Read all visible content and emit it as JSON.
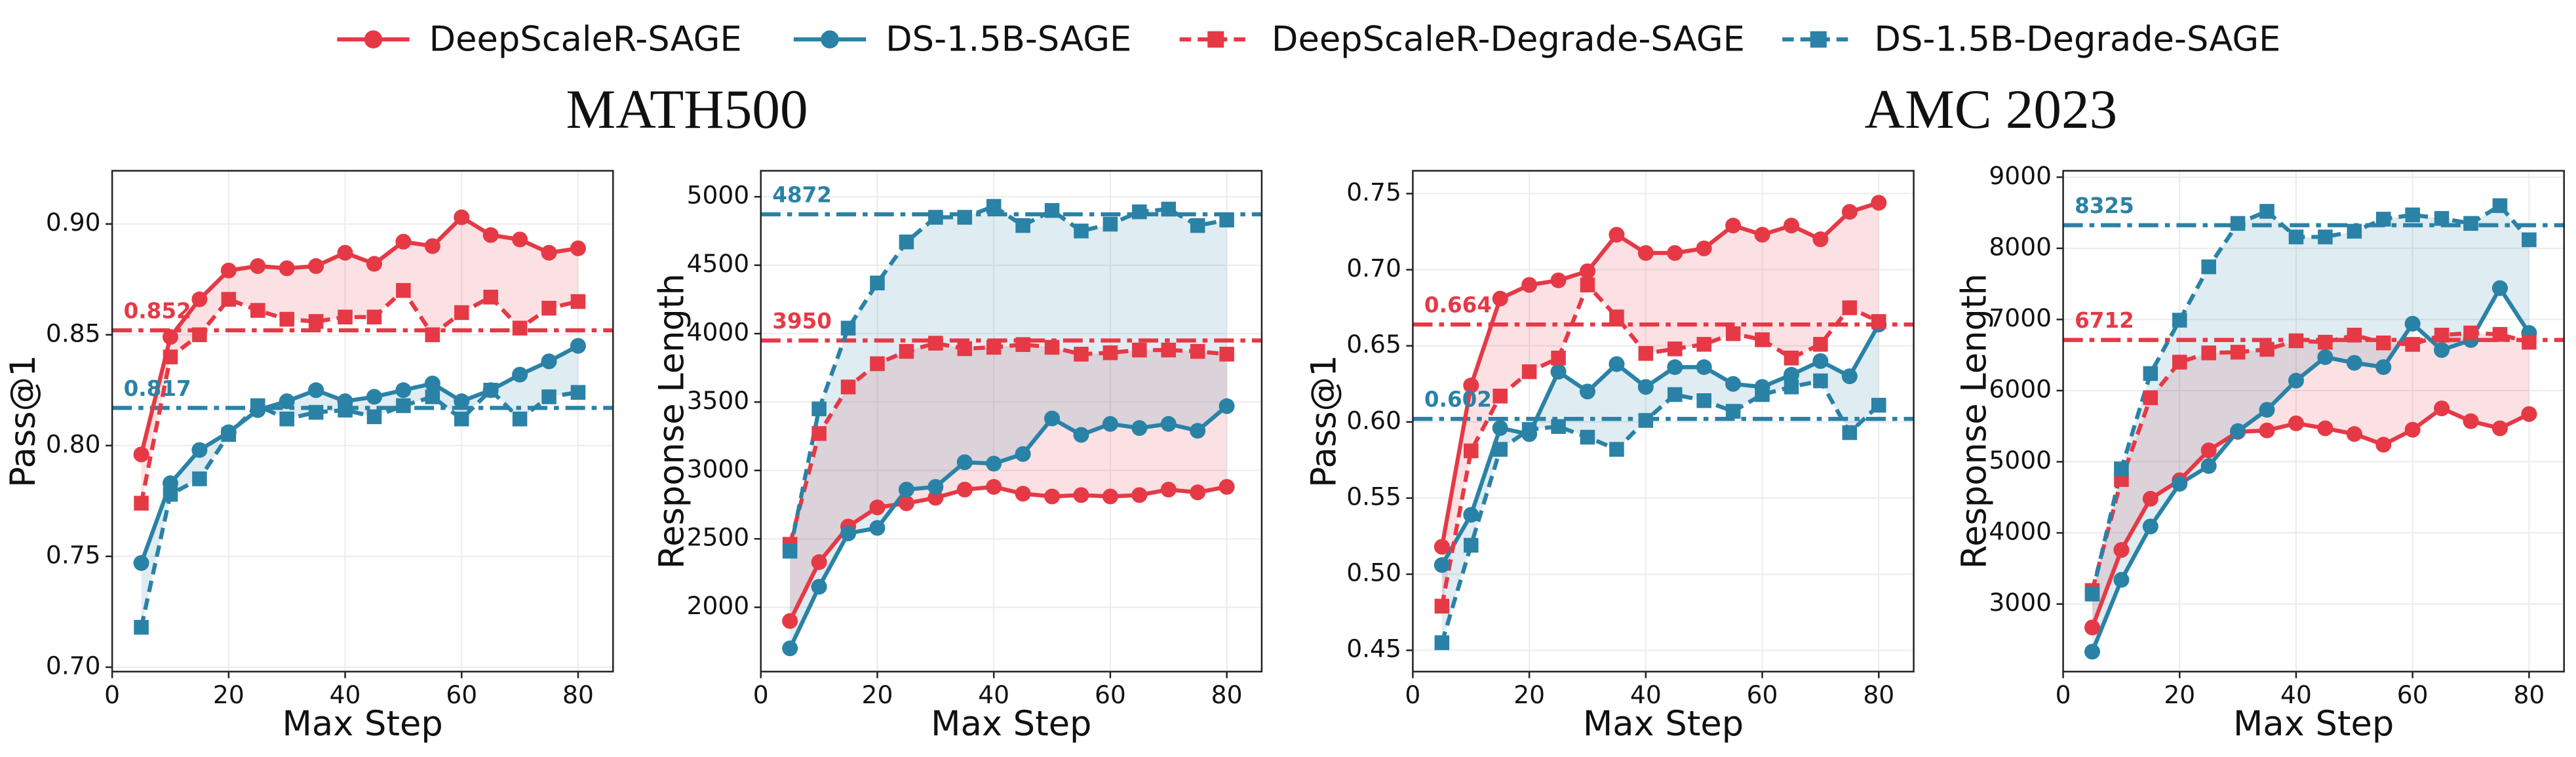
{
  "legend": {
    "entries": [
      {
        "name": "DeepScaleR-SAGE",
        "color": "#e63946",
        "marker": "circle",
        "linestyle": "solid"
      },
      {
        "name": "DS-1.5B-SAGE",
        "color": "#2a82a6",
        "marker": "circle",
        "linestyle": "solid"
      },
      {
        "name": "DeepScaleR-Degrade-SAGE",
        "color": "#e63946",
        "marker": "square",
        "linestyle": "dashed"
      },
      {
        "name": "DS-1.5B-Degrade-SAGE",
        "color": "#2a82a6",
        "marker": "square",
        "linestyle": "dashed"
      }
    ]
  },
  "panel_titles": [
    "MATH500",
    "AMC 2023"
  ],
  "fill_between": [
    [
      0,
      2
    ],
    [
      1,
      3
    ]
  ],
  "chart_data": [
    {
      "type": "line",
      "x_label": "Max Step",
      "y_label": "Pass@1",
      "x": [
        5,
        10,
        15,
        20,
        25,
        30,
        35,
        40,
        45,
        50,
        55,
        60,
        65,
        70,
        75,
        80
      ],
      "xlim": [
        0,
        86
      ],
      "xticks": [
        0,
        20,
        40,
        60,
        80
      ],
      "ylim": [
        0.698,
        0.924
      ],
      "yticks": [
        {
          "value": 0.7,
          "label": "0.70"
        },
        0.75,
        {
          "value": 0.8,
          "label": "0.80"
        },
        0.85,
        {
          "value": 0.9,
          "label": "0.90"
        }
      ],
      "grid": true,
      "hlines": [
        {
          "value": 0.852,
          "color": "#e63946"
        },
        {
          "value": 0.817,
          "color": "#2a82a6"
        }
      ],
      "series": [
        {
          "values": [
            0.796,
            0.849,
            0.866,
            0.879,
            0.881,
            0.88,
            0.881,
            0.887,
            0.882,
            0.892,
            0.89,
            0.903,
            0.895,
            0.893,
            0.887,
            0.889
          ]
        },
        {
          "values": [
            0.747,
            0.783,
            0.798,
            0.806,
            0.816,
            0.82,
            0.825,
            0.82,
            0.822,
            0.825,
            0.828,
            0.82,
            0.825,
            0.832,
            0.838,
            0.845
          ]
        },
        {
          "values": [
            0.774,
            0.84,
            0.85,
            0.866,
            0.861,
            0.857,
            0.856,
            0.858,
            0.858,
            0.87,
            0.85,
            0.86,
            0.867,
            0.853,
            0.862,
            0.865
          ]
        },
        {
          "values": [
            0.718,
            0.778,
            0.785,
            0.805,
            0.818,
            0.812,
            0.815,
            0.816,
            0.813,
            0.818,
            0.822,
            0.812,
            0.825,
            0.812,
            0.822,
            0.824
          ]
        }
      ]
    },
    {
      "type": "line",
      "x_label": "Max Step",
      "y_label": "Response Length",
      "x": [
        5,
        10,
        15,
        20,
        25,
        30,
        35,
        40,
        45,
        50,
        55,
        60,
        65,
        70,
        75,
        80
      ],
      "xlim": [
        0,
        86
      ],
      "xticks": [
        0,
        20,
        40,
        60,
        80
      ],
      "ylim": [
        1530,
        5190
      ],
      "yticks": [
        2000,
        2500,
        3000,
        3500,
        4000,
        4500,
        5000
      ],
      "grid": true,
      "hlines": [
        {
          "value": 4872,
          "color": "#2a82a6"
        },
        {
          "value": 3950,
          "color": "#e63946"
        }
      ],
      "series": [
        {
          "values": [
            1900,
            2330,
            2590,
            2730,
            2760,
            2800,
            2860,
            2880,
            2830,
            2810,
            2820,
            2810,
            2820,
            2860,
            2840,
            2880
          ]
        },
        {
          "values": [
            1700,
            2150,
            2540,
            2580,
            2860,
            2880,
            3060,
            3050,
            3120,
            3380,
            3260,
            3340,
            3310,
            3340,
            3290,
            3470
          ]
        },
        {
          "values": [
            2460,
            3270,
            3610,
            3780,
            3870,
            3930,
            3890,
            3900,
            3920,
            3900,
            3850,
            3860,
            3880,
            3880,
            3870,
            3850
          ]
        },
        {
          "values": [
            2410,
            3450,
            4040,
            4370,
            4670,
            4850,
            4850,
            4930,
            4790,
            4900,
            4750,
            4800,
            4890,
            4910,
            4790,
            4830
          ]
        }
      ]
    },
    {
      "type": "line",
      "x_label": "Max Step",
      "y_label": "Pass@1",
      "x": [
        5,
        10,
        15,
        20,
        25,
        30,
        35,
        40,
        45,
        50,
        55,
        60,
        65,
        70,
        75,
        80
      ],
      "xlim": [
        0,
        86
      ],
      "xticks": [
        0,
        20,
        40,
        60,
        80
      ],
      "ylim": [
        0.436,
        0.765
      ],
      "yticks": [
        0.45,
        {
          "value": 0.5,
          "label": "0.50"
        },
        0.55,
        {
          "value": 0.6,
          "label": "0.60"
        },
        0.65,
        {
          "value": 0.7,
          "label": "0.70"
        },
        0.75
      ],
      "grid": true,
      "hlines": [
        {
          "value": 0.664,
          "color": "#e63946"
        },
        {
          "value": 0.602,
          "color": "#2a82a6"
        }
      ],
      "series": [
        {
          "values": [
            0.518,
            0.624,
            0.681,
            0.69,
            0.693,
            0.699,
            0.723,
            0.711,
            0.711,
            0.714,
            0.729,
            0.723,
            0.729,
            0.72,
            0.738,
            0.744
          ]
        },
        {
          "values": [
            0.506,
            0.539,
            0.596,
            0.592,
            0.633,
            0.62,
            0.638,
            0.623,
            0.636,
            0.636,
            0.625,
            0.623,
            0.631,
            0.64,
            0.63,
            0.664
          ]
        },
        {
          "values": [
            0.479,
            0.581,
            0.617,
            0.633,
            0.642,
            0.69,
            0.669,
            0.645,
            0.648,
            0.651,
            0.658,
            0.654,
            0.642,
            0.651,
            0.675,
            0.666
          ]
        },
        {
          "values": [
            0.455,
            0.519,
            0.582,
            0.595,
            0.597,
            0.59,
            0.582,
            0.601,
            0.618,
            0.614,
            0.607,
            0.618,
            0.623,
            0.627,
            0.593,
            0.611
          ]
        }
      ]
    },
    {
      "type": "line",
      "x_label": "Max Step",
      "y_label": "Response Length",
      "x": [
        5,
        10,
        15,
        20,
        25,
        30,
        35,
        40,
        45,
        50,
        55,
        60,
        65,
        70,
        75,
        80
      ],
      "xlim": [
        0,
        86
      ],
      "xticks": [
        0,
        20,
        40,
        60,
        80
      ],
      "ylim": [
        2050,
        9090
      ],
      "yticks": [
        3000,
        4000,
        5000,
        6000,
        7000,
        8000,
        9000
      ],
      "grid": true,
      "hlines": [
        {
          "value": 8325,
          "color": "#2a82a6"
        },
        {
          "value": 6712,
          "color": "#e63946"
        }
      ],
      "series": [
        {
          "values": [
            2670,
            3760,
            4480,
            4740,
            5160,
            5420,
            5440,
            5540,
            5470,
            5390,
            5240,
            5450,
            5750,
            5570,
            5470,
            5670
          ]
        },
        {
          "values": [
            2330,
            3340,
            4090,
            4690,
            4940,
            5430,
            5730,
            6140,
            6470,
            6390,
            6330,
            6940,
            6570,
            6710,
            7440,
            6810
          ]
        },
        {
          "values": [
            3190,
            4750,
            5900,
            6400,
            6530,
            6540,
            6580,
            6700,
            6680,
            6780,
            6670,
            6650,
            6780,
            6810,
            6790,
            6680
          ]
        },
        {
          "values": [
            3140,
            4900,
            6240,
            6990,
            7740,
            8350,
            8520,
            8160,
            8160,
            8240,
            8410,
            8470,
            8420,
            8350,
            8600,
            8120
          ]
        }
      ]
    }
  ]
}
